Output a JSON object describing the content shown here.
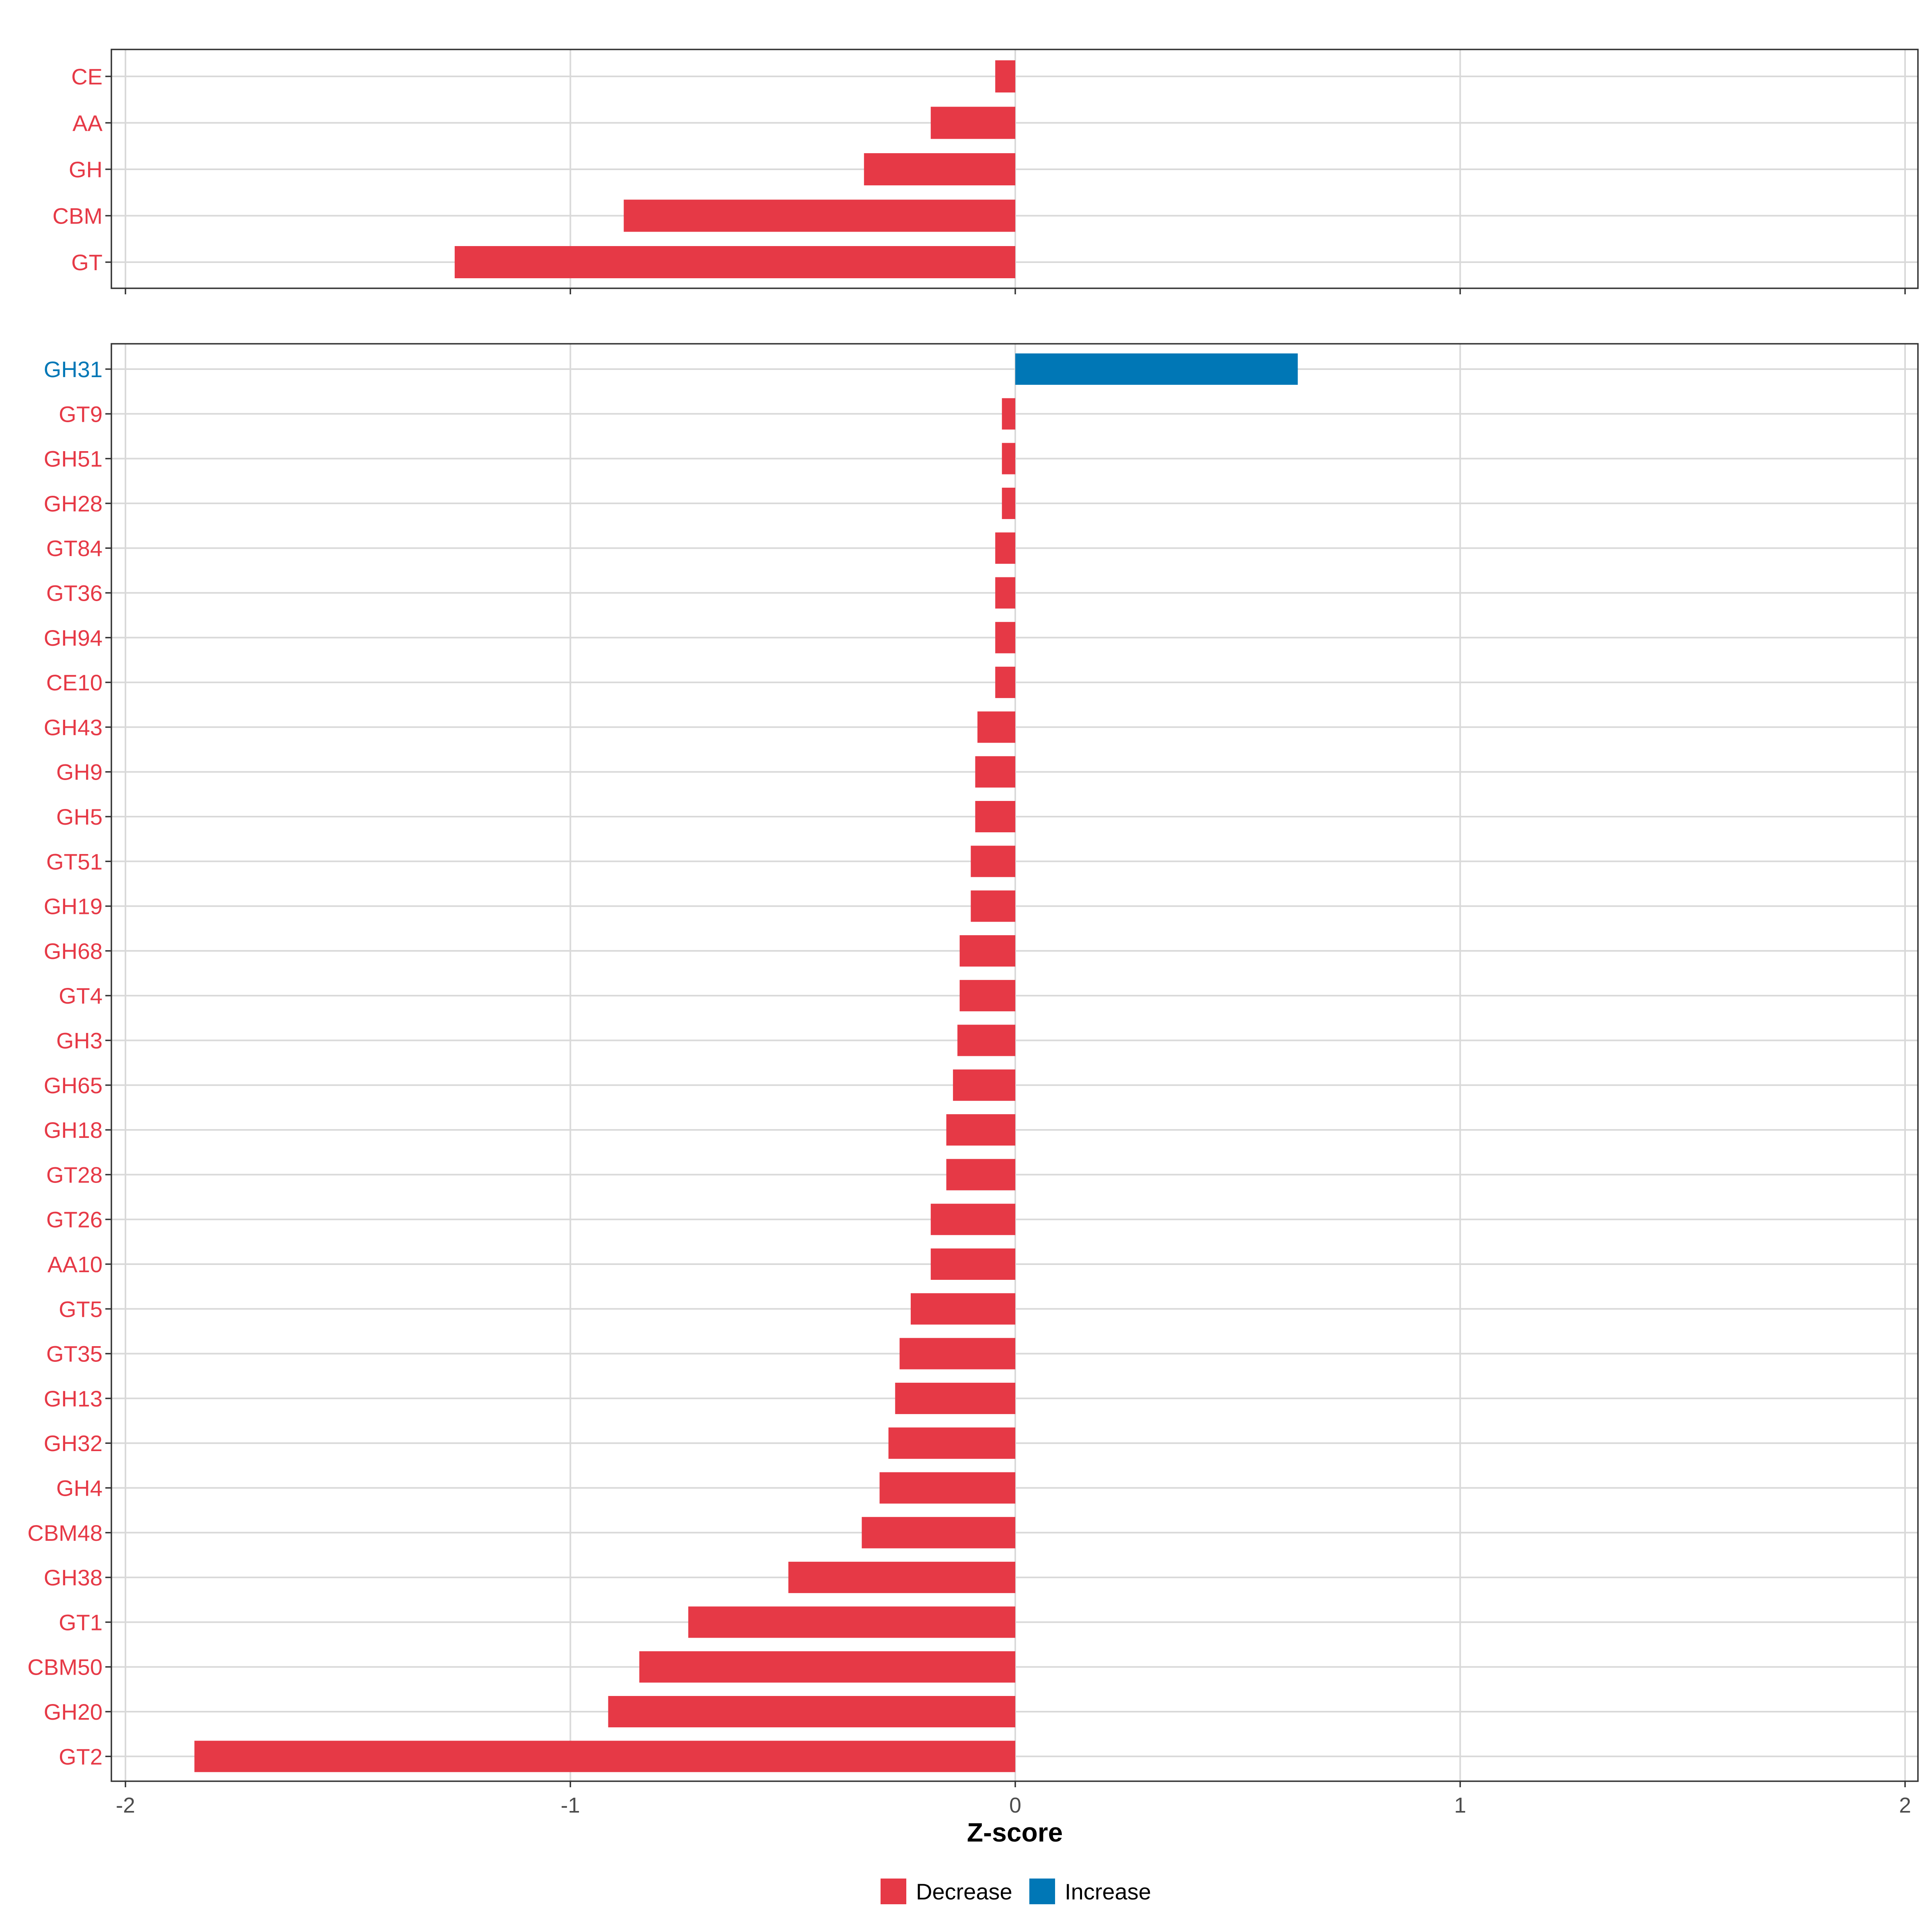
{
  "chart_data": [
    {
      "type": "bar",
      "orientation": "horizontal",
      "panel": "top",
      "categories": [
        "CE",
        "AA",
        "GH",
        "CBM",
        "GT"
      ],
      "values": [
        -0.045,
        -0.19,
        -0.34,
        -0.88,
        -1.26
      ],
      "xlim": [
        -2,
        2
      ],
      "xticks": [
        -2,
        -1,
        0,
        1,
        2
      ],
      "grid": true
    },
    {
      "type": "bar",
      "orientation": "horizontal",
      "panel": "bottom",
      "categories": [
        "GH31",
        "GT9",
        "GH51",
        "GH28",
        "GT84",
        "GT36",
        "GH94",
        "CE10",
        "GH43",
        "GH9",
        "GH5",
        "GT51",
        "GH19",
        "GH68",
        "GT4",
        "GH3",
        "GH65",
        "GH18",
        "GT28",
        "GT26",
        "AA10",
        "GT5",
        "GT35",
        "GH13",
        "GH32",
        "GH4",
        "CBM48",
        "GH38",
        "GT1",
        "CBM50",
        "GH20",
        "GT2"
      ],
      "values": [
        0.635,
        -0.03,
        -0.03,
        -0.03,
        -0.045,
        -0.045,
        -0.045,
        -0.045,
        -0.085,
        -0.09,
        -0.09,
        -0.1,
        -0.1,
        -0.125,
        -0.125,
        -0.13,
        -0.14,
        -0.155,
        -0.155,
        -0.19,
        -0.19,
        -0.235,
        -0.26,
        -0.27,
        -0.285,
        -0.305,
        -0.345,
        -0.51,
        -0.735,
        -0.845,
        -0.915,
        -1.845
      ],
      "xlim": [
        -2,
        2
      ],
      "xticks": [
        -2,
        -1,
        0,
        1,
        2
      ],
      "xlabel": "Z-score",
      "grid": true
    }
  ],
  "legend": {
    "position": "bottom",
    "items": [
      {
        "label": "Decrease",
        "color": "#E63946"
      },
      {
        "label": "Increase",
        "color": "#0077B6"
      }
    ]
  },
  "colors": {
    "decrease": "#E63946",
    "increase": "#0077B6",
    "grid": "#D9D9D9",
    "panel_border": "#333333",
    "tick_text": "#4d4d4d"
  }
}
